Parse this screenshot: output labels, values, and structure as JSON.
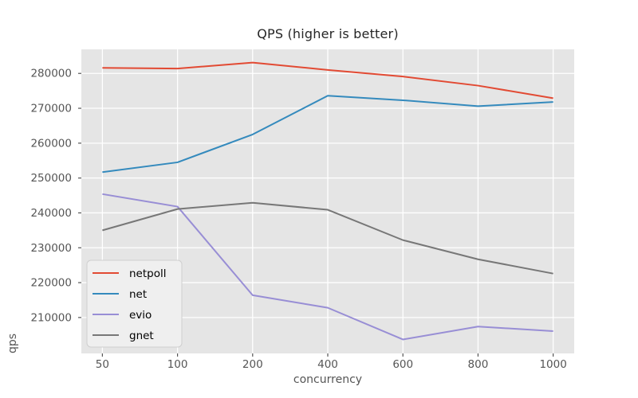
{
  "chart_data": {
    "type": "line",
    "title": "QPS (higher is better)",
    "xlabel": "concurrency",
    "ylabel": "qps",
    "categories": [
      50,
      100,
      200,
      400,
      600,
      800,
      1000
    ],
    "x_evenly_spaced": true,
    "series": [
      {
        "name": "netpoll",
        "color": "#E24A33",
        "values": [
          281600,
          281400,
          283100,
          281000,
          279100,
          276500,
          272900
        ]
      },
      {
        "name": "net",
        "color": "#348ABD",
        "values": [
          251700,
          254500,
          262500,
          273600,
          272300,
          270600,
          271800
        ]
      },
      {
        "name": "evio",
        "color": "#988ED5",
        "values": [
          245400,
          241800,
          216400,
          212800,
          203700,
          207400,
          206100
        ]
      },
      {
        "name": "gnet",
        "color": "#777777",
        "values": [
          235000,
          241100,
          242900,
          240900,
          232200,
          226700,
          222600
        ]
      }
    ],
    "yticks": [
      210000,
      220000,
      230000,
      240000,
      250000,
      260000,
      270000,
      280000
    ],
    "ylim": [
      199700,
      286900
    ],
    "grid": true,
    "legend_position": "lower left",
    "style": {
      "plot_bg": "#E5E5E5",
      "grid_color": "#FFFFFF",
      "tick_color": "#555555",
      "label_color": "#555555",
      "title_color": "#262626",
      "legend_bg": "#EFEFEF",
      "legend_border": "#CFCFCF"
    }
  }
}
